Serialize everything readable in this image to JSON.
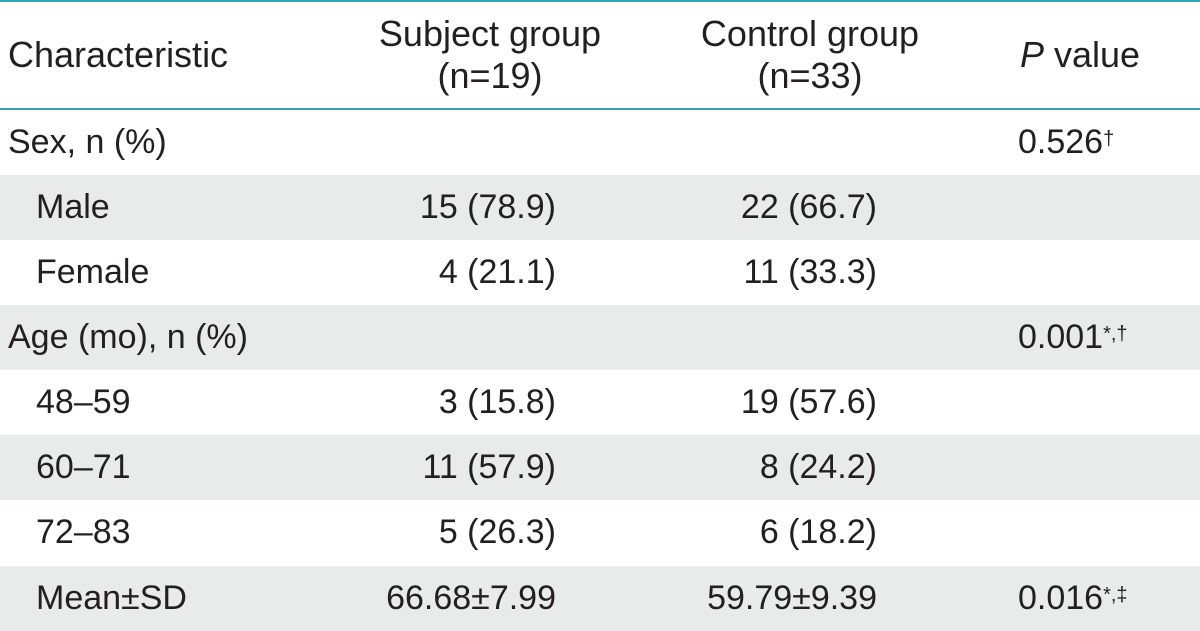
{
  "table": {
    "headers": {
      "characteristic": "Characteristic",
      "subject_line1": "Subject group",
      "subject_line2": "(n=19)",
      "control_line1": "Control group",
      "control_line2": "(n=33)",
      "p_italic": "P",
      "p_rest": " value"
    },
    "rows": [
      {
        "label": "Sex, n (%)",
        "subject": "",
        "control": "",
        "p": "0.526",
        "p_mark": "†"
      },
      {
        "label": "Male",
        "subject": "15 (78.9)",
        "control": "22 (66.7)",
        "p": "",
        "p_mark": ""
      },
      {
        "label": "Female",
        "subject": "4 (21.1)",
        "control": "11 (33.3)",
        "p": "",
        "p_mark": ""
      },
      {
        "label": "Age (mo), n (%)",
        "subject": "",
        "control": "",
        "p": "0.001",
        "p_mark": "*,†"
      },
      {
        "label": "48–59",
        "subject": "3 (15.8)",
        "control": "19 (57.6)",
        "p": "",
        "p_mark": ""
      },
      {
        "label": "60–71",
        "subject": "11 (57.9)",
        "control": "8 (24.2)",
        "p": "",
        "p_mark": ""
      },
      {
        "label": "72–83",
        "subject": "5 (26.3)",
        "control": "6 (18.2)",
        "p": "",
        "p_mark": ""
      },
      {
        "label": "Mean±SD",
        "subject": "66.68±7.99",
        "control": "59.79±9.39",
        "p": "0.016",
        "p_mark": "*,‡"
      }
    ]
  },
  "colors": {
    "rule": "#2fa6b4",
    "shade": "#e9eaea",
    "text": "#231f20"
  }
}
